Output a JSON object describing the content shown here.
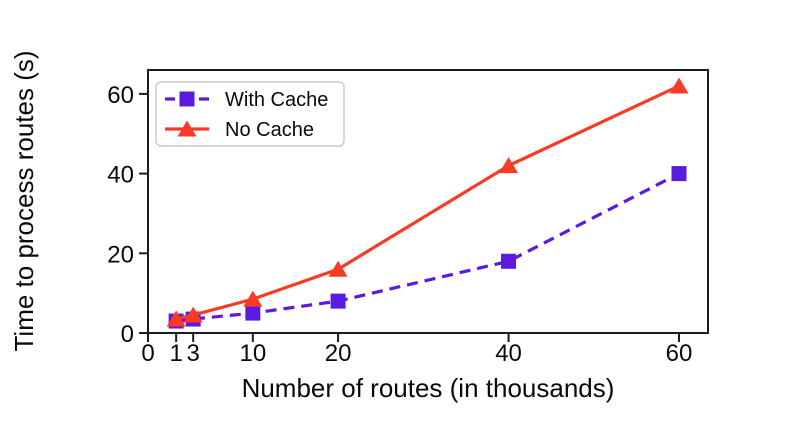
{
  "figure": {
    "background": "#ffffff"
  },
  "chart_data": {
    "type": "line",
    "title": "",
    "xlabel": "Number of routes (in thousands)",
    "ylabel": "Time to process routes (s)",
    "x": [
      1,
      3,
      10,
      20,
      40,
      60
    ],
    "series": [
      {
        "name": "With Cache",
        "values": [
          3,
          3.5,
          5,
          8,
          18,
          40
        ],
        "color": "#5a1be0",
        "line_style": "dashed",
        "marker": "square"
      },
      {
        "name": "No Cache",
        "values": [
          3.5,
          4.5,
          8.5,
          16,
          42,
          62
        ],
        "color": "#f93b26",
        "line_style": "solid",
        "marker": "triangle-up"
      }
    ],
    "x_ticks": [
      0,
      1,
      3,
      10,
      20,
      40,
      60
    ],
    "y_ticks": [
      0,
      20,
      40,
      60
    ],
    "xlim": [
      -2.3,
      63.4
    ],
    "ylim": [
      0,
      66
    ],
    "grid": false,
    "legend": {
      "position": "upper-left",
      "entries": [
        "With Cache",
        "No Cache"
      ]
    },
    "axis_color": "#1c1c1c",
    "text_color": "#0a0a0a",
    "legend_border_color": "#cccccc"
  }
}
